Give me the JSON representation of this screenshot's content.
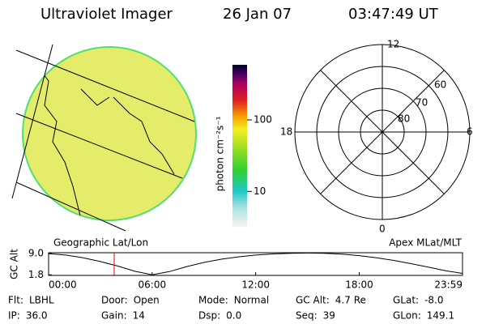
{
  "header": {
    "title": "Ultraviolet Imager",
    "date": "26 Jan 07",
    "time": "03:47:49 UT"
  },
  "image": {
    "caption": "Geographic Lat/Lon"
  },
  "colorbar": {
    "label": "photon cm⁻²s⁻¹",
    "log": true,
    "ylim": [
      3.2,
      590
    ],
    "yticks": [
      10,
      100
    ]
  },
  "polar": {
    "caption": "Apex MLat/MLT",
    "noon": "12",
    "dawn": "6",
    "midnight": "0",
    "dusk": "18",
    "lat_labels": [
      60,
      70,
      80
    ]
  },
  "altitude": {
    "ylabel": "GC Alt",
    "ylim": [
      1.6,
      9.3
    ],
    "yticks": [
      1.8,
      {
        "value": 9,
        "label": "9.0"
      }
    ],
    "xlim": [
      0,
      23.983
    ],
    "xticks": [
      {
        "value": 0,
        "label": "00:00"
      },
      {
        "value": 6,
        "label": "06:00"
      },
      {
        "value": 12,
        "label": "12:00"
      },
      {
        "value": 18,
        "label": "18:00"
      },
      {
        "value": 23.983,
        "label": "23:59"
      }
    ],
    "x": [
      0,
      1,
      2,
      3,
      4,
      5,
      6,
      7,
      8,
      9,
      10,
      11,
      12,
      13,
      14,
      15,
      16,
      17,
      18,
      19,
      20,
      21,
      22,
      23,
      23.983
    ],
    "values": [
      9.0,
      8.5,
      7.6,
      6.3,
      4.8,
      3.0,
      1.8,
      2.9,
      4.6,
      6.0,
      7.1,
      7.9,
      8.5,
      8.9,
      9.1,
      9.2,
      9.1,
      8.8,
      8.3,
      7.6,
      6.7,
      5.6,
      4.4,
      3.2,
      2.3
    ],
    "marker_time": 3.8
  },
  "status": [
    [
      {
        "label": "Flt:",
        "value": "LBHL"
      },
      {
        "label": "Door:",
        "value": "Open"
      },
      {
        "label": "Mode:",
        "value": "Normal"
      },
      {
        "label": "GC Alt:",
        "value": "4.7 Re"
      },
      {
        "label": "GLat:",
        "value": "-8.0"
      }
    ],
    [
      {
        "label": "IP:",
        "value": "36.0"
      },
      {
        "label": "Gain:",
        "value": "14"
      },
      {
        "label": "Dsp:",
        "value": "0.0"
      },
      {
        "label": "Seq:",
        "value": "39"
      },
      {
        "label": "GLon:",
        "value": "149.1"
      }
    ]
  ]
}
